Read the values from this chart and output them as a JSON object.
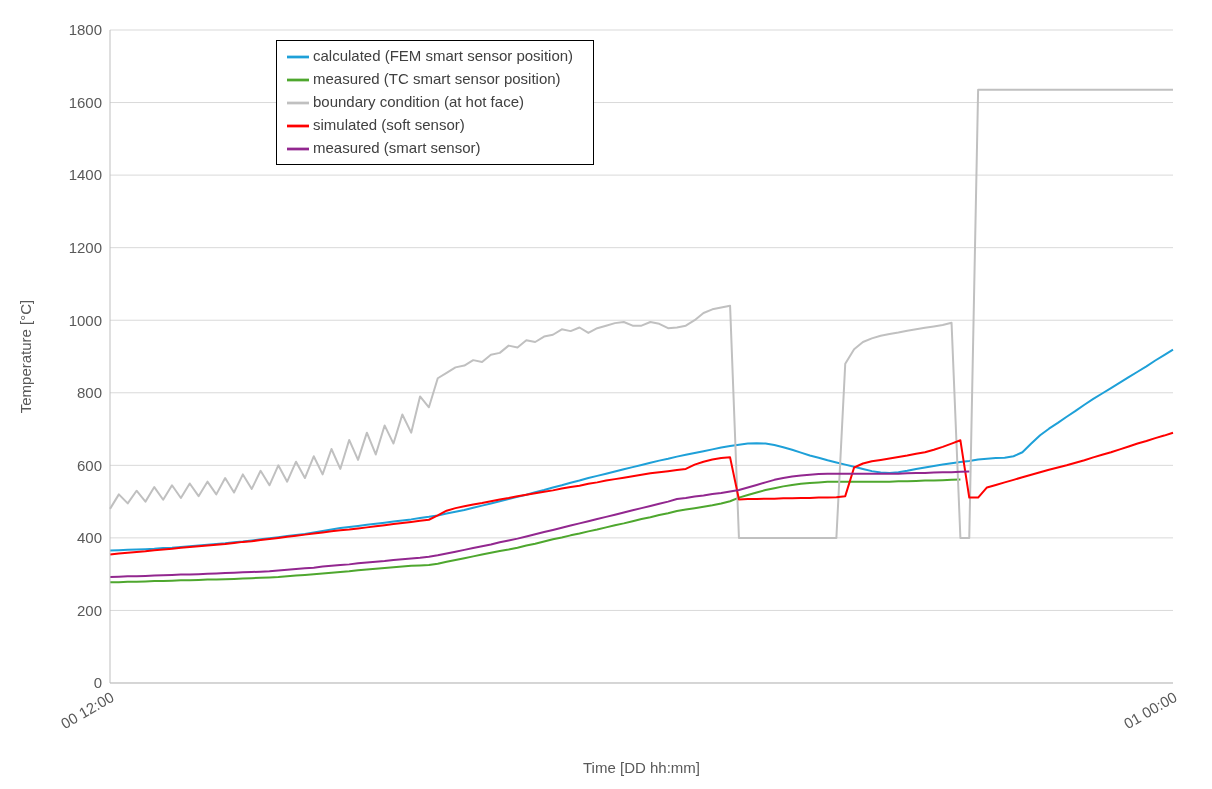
{
  "chart_data": {
    "type": "line",
    "xlabel": "Time [DD hh:mm]",
    "ylabel": "Temperature [°C]",
    "categories": [
      "00 12:00",
      null,
      null,
      null,
      null,
      null,
      null,
      null,
      null,
      null,
      null,
      null,
      null,
      null,
      null,
      null,
      null,
      null,
      null,
      null,
      null,
      null,
      null,
      null,
      null,
      null,
      null,
      null,
      null,
      null,
      null,
      null,
      null,
      null,
      null,
      null,
      null,
      null,
      null,
      null,
      null,
      null,
      null,
      null,
      null,
      null,
      null,
      null,
      null,
      null,
      null,
      null,
      null,
      null,
      null,
      null,
      null,
      null,
      null,
      null,
      null,
      null,
      null,
      null,
      null,
      null,
      null,
      null,
      null,
      null,
      null,
      null,
      null,
      null,
      null,
      null,
      null,
      null,
      null,
      null,
      null,
      null,
      null,
      null,
      null,
      null,
      null,
      null,
      null,
      null,
      null,
      null,
      null,
      null,
      null,
      null,
      null,
      null,
      null,
      null,
      null,
      null,
      null,
      null,
      null,
      null,
      null,
      null,
      null,
      null,
      null,
      null,
      null,
      null,
      null,
      null,
      null,
      null,
      null,
      null,
      "01 00:00"
    ],
    "ylim": [
      0,
      1800
    ],
    "yticks": [
      0,
      200,
      400,
      600,
      800,
      1000,
      1200,
      1400,
      1600,
      1800
    ],
    "grid": "y",
    "legend": "top left",
    "marker": "none",
    "line_style": "solid",
    "series": [
      {
        "name": "calculated (FEM smart sensor position)",
        "color": "#1ea0d8",
        "values": [
          365,
          366,
          367,
          368,
          369,
          370,
          372,
          373,
          375,
          377,
          379,
          381,
          383,
          385,
          388,
          390,
          393,
          396,
          399,
          402,
          405,
          408,
          411,
          415,
          419,
          423,
          427,
          430,
          433,
          436,
          439,
          442,
          445,
          448,
          451,
          455,
          458,
          462,
          467,
          472,
          477,
          483,
          489,
          495,
          501,
          507,
          513,
          519,
          526,
          532,
          539,
          545,
          552,
          558,
          565,
          571,
          577,
          583,
          589,
          595,
          601,
          607,
          613,
          618,
          624,
          629,
          634,
          639,
          644,
          649,
          653,
          657,
          660,
          661,
          660,
          656,
          650,
          643,
          635,
          627,
          621,
          614,
          608,
          602,
          596,
          590,
          584,
          580,
          579,
          581,
          585,
          590,
          594,
          598,
          602,
          606,
          609,
          612,
          616,
          618,
          620,
          621,
          625,
          636,
          660,
          683,
          701,
          717,
          734,
          750,
          767,
          783,
          798,
          813,
          828,
          843,
          858,
          873,
          889,
          904,
          919
        ]
      },
      {
        "name": "measured (TC smart sensor position)",
        "color": "#4ea72e",
        "values": [
          278,
          278,
          279,
          279,
          280,
          281,
          281,
          282,
          283,
          283,
          284,
          285,
          285,
          286,
          287,
          288,
          289,
          290,
          291,
          292,
          294,
          296,
          298,
          300,
          302,
          304,
          306,
          308,
          311,
          313,
          315,
          317,
          319,
          321,
          323,
          324,
          325,
          329,
          334,
          339,
          344,
          349,
          354,
          359,
          364,
          368,
          373,
          379,
          384,
          390,
          396,
          401,
          407,
          412,
          418,
          423,
          429,
          435,
          440,
          446,
          452,
          457,
          463,
          468,
          474,
          478,
          482,
          486,
          490,
          495,
          501,
          511,
          518,
          525,
          532,
          537,
          542,
          546,
          549,
          551,
          553,
          555,
          555,
          555,
          555,
          555,
          555,
          555,
          555,
          556,
          556,
          557,
          558,
          558,
          559,
          560,
          561,
          null,
          null,
          null,
          null,
          null,
          null,
          null,
          null,
          null,
          null,
          null,
          null,
          null,
          null,
          null,
          null,
          null,
          null,
          null,
          null,
          null,
          null,
          null,
          null
        ]
      },
      {
        "name": "boundary condition (at hot face)",
        "color": "#c0c0c0",
        "values": [
          480,
          520,
          495,
          530,
          500,
          540,
          505,
          545,
          510,
          550,
          515,
          555,
          520,
          565,
          525,
          575,
          535,
          585,
          545,
          600,
          555,
          610,
          565,
          625,
          575,
          645,
          590,
          670,
          615,
          690,
          630,
          710,
          660,
          740,
          690,
          790,
          760,
          840,
          855,
          870,
          875,
          890,
          885,
          905,
          910,
          930,
          925,
          945,
          940,
          955,
          960,
          975,
          970,
          980,
          965,
          978,
          985,
          992,
          995,
          985,
          985,
          995,
          990,
          978,
          980,
          985,
          1000,
          1020,
          1030,
          1035,
          1040,
          400,
          400,
          400,
          400,
          400,
          400,
          400,
          400,
          400,
          400,
          400,
          400,
          880,
          920,
          940,
          950,
          957,
          962,
          966,
          971,
          975,
          979,
          983,
          987,
          993,
          400,
          400,
          1635,
          1635,
          1635,
          1635,
          1635,
          1635,
          1635,
          1635,
          1635,
          1635,
          1635,
          1635,
          1635,
          1635,
          1635,
          1635,
          1635,
          1635,
          1635,
          1635,
          1635,
          1635,
          1635
        ]
      },
      {
        "name": "simulated (soft sensor)",
        "color": "#ff0000",
        "values": [
          354,
          357,
          359,
          361,
          363,
          366,
          368,
          370,
          373,
          375,
          377,
          379,
          381,
          383,
          386,
          389,
          391,
          394,
          397,
          400,
          403,
          406,
          409,
          412,
          415,
          418,
          421,
          423,
          426,
          429,
          432,
          435,
          438,
          441,
          444,
          447,
          450,
          462,
          475,
          482,
          487,
          492,
          496,
          501,
          506,
          510,
          515,
          519,
          523,
          527,
          531,
          536,
          540,
          544,
          549,
          553,
          558,
          562,
          566,
          570,
          574,
          578,
          581,
          584,
          587,
          590,
          602,
          610,
          616,
          620,
          622,
          506,
          507,
          507,
          508,
          508,
          509,
          509,
          510,
          510,
          511,
          511,
          512,
          515,
          594,
          605,
          611,
          615,
          619,
          623,
          627,
          632,
          636,
          643,
          651,
          660,
          669,
          511,
          511,
          539,
          546,
          553,
          560,
          567,
          574,
          581,
          588,
          594,
          600,
          607,
          614,
          622,
          629,
          636,
          644,
          652,
          660,
          667,
          675,
          682,
          690
        ]
      },
      {
        "name": "measured (smart sensor)",
        "color": "#92278f",
        "values": [
          292,
          293,
          294,
          294,
          295,
          296,
          297,
          298,
          299,
          299,
          300,
          301,
          302,
          303,
          304,
          305,
          306,
          307,
          308,
          310,
          312,
          314,
          316,
          318,
          321,
          323,
          325,
          327,
          330,
          332,
          334,
          336,
          339,
          341,
          343,
          345,
          348,
          352,
          357,
          362,
          367,
          372,
          377,
          382,
          388,
          393,
          398,
          404,
          410,
          416,
          422,
          428,
          434,
          440,
          446,
          452,
          458,
          464,
          470,
          476,
          482,
          488,
          494,
          500,
          507,
          510,
          514,
          517,
          521,
          524,
          528,
          532,
          539,
          546,
          553,
          560,
          565,
          569,
          572,
          574,
          576,
          577,
          577,
          577,
          577,
          577,
          577,
          577,
          577,
          577,
          578,
          579,
          579,
          580,
          581,
          581,
          582,
          583,
          null,
          null,
          null,
          null,
          null,
          null,
          null,
          null,
          null,
          null,
          null,
          null,
          null,
          null,
          null,
          null,
          null,
          null,
          null,
          null,
          null,
          null,
          null
        ]
      }
    ]
  }
}
